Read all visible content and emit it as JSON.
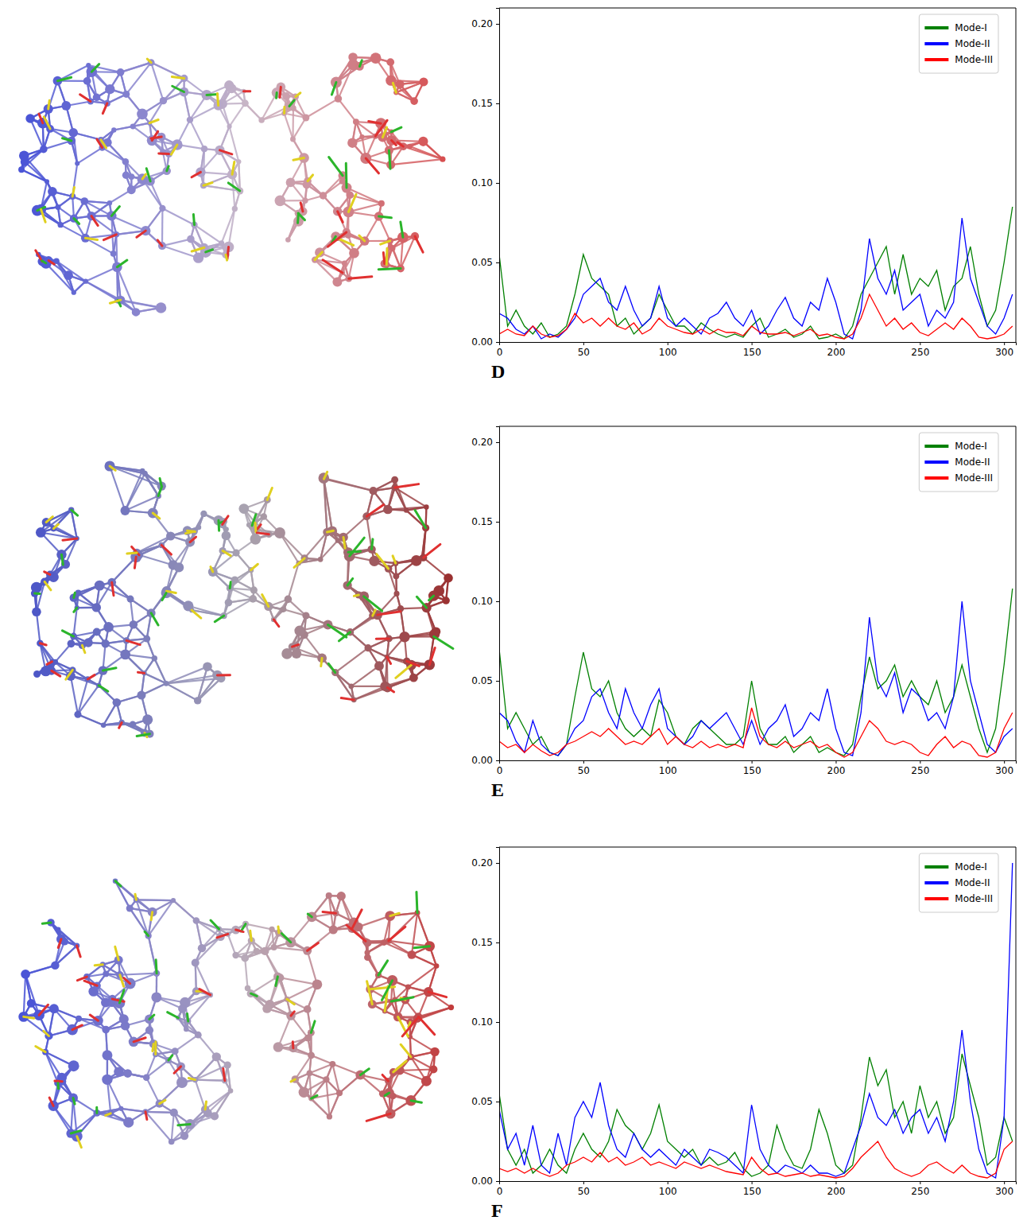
{
  "chart_data": [
    {
      "type": "line",
      "panel_label": "D",
      "x": [
        0,
        5,
        10,
        15,
        20,
        25,
        30,
        35,
        40,
        45,
        50,
        55,
        60,
        65,
        70,
        75,
        80,
        85,
        90,
        95,
        100,
        105,
        110,
        115,
        120,
        125,
        130,
        135,
        140,
        145,
        150,
        155,
        160,
        165,
        170,
        175,
        180,
        185,
        190,
        195,
        200,
        205,
        210,
        215,
        220,
        225,
        230,
        235,
        240,
        245,
        250,
        255,
        260,
        265,
        270,
        275,
        280,
        285,
        290,
        295,
        300,
        305
      ],
      "xlim": [
        0,
        307
      ],
      "ylim": [
        0,
        0.21
      ],
      "xticks": [
        0,
        50,
        100,
        150,
        200,
        250,
        300
      ],
      "yticks": [
        {
          "value": 0,
          "label": "0.00"
        },
        {
          "value": 0.05,
          "label": "0.05"
        },
        {
          "value": 0.1,
          "label": "0.10"
        },
        {
          "value": 0.15,
          "label": "0.15"
        },
        {
          "value": 0.2,
          "label": "0.20"
        }
      ],
      "legend": "upper right",
      "grid": false,
      "series": [
        {
          "name": "Mode-I",
          "color": "#008000",
          "values": [
            0.055,
            0.01,
            0.02,
            0.01,
            0.005,
            0.012,
            0.003,
            0.005,
            0.01,
            0.03,
            0.055,
            0.04,
            0.035,
            0.03,
            0.01,
            0.015,
            0.005,
            0.01,
            0.015,
            0.03,
            0.02,
            0.01,
            0.01,
            0.005,
            0.012,
            0.008,
            0.005,
            0.003,
            0.005,
            0.003,
            0.01,
            0.015,
            0.003,
            0.005,
            0.008,
            0.003,
            0.005,
            0.01,
            0.002,
            0.003,
            0.005,
            0.002,
            0.01,
            0.03,
            0.04,
            0.05,
            0.06,
            0.03,
            0.055,
            0.03,
            0.04,
            0.035,
            0.045,
            0.02,
            0.035,
            0.04,
            0.06,
            0.03,
            0.01,
            0.02,
            0.05,
            0.085
          ]
        },
        {
          "name": "Mode-II",
          "color": "#0000ff",
          "values": [
            0.018,
            0.015,
            0.008,
            0.005,
            0.01,
            0.002,
            0.005,
            0.003,
            0.008,
            0.015,
            0.03,
            0.035,
            0.04,
            0.025,
            0.02,
            0.035,
            0.02,
            0.01,
            0.015,
            0.035,
            0.015,
            0.01,
            0.015,
            0.01,
            0.005,
            0.015,
            0.018,
            0.025,
            0.015,
            0.01,
            0.02,
            0.005,
            0.01,
            0.02,
            0.028,
            0.015,
            0.01,
            0.025,
            0.02,
            0.04,
            0.025,
            0.005,
            0.002,
            0.02,
            0.065,
            0.04,
            0.03,
            0.045,
            0.02,
            0.025,
            0.03,
            0.01,
            0.02,
            0.015,
            0.025,
            0.078,
            0.04,
            0.025,
            0.01,
            0.005,
            0.015,
            0.03
          ]
        },
        {
          "name": "Mode-III",
          "color": "#ff0000",
          "values": [
            0.005,
            0.008,
            0.005,
            0.004,
            0.01,
            0.005,
            0.003,
            0.004,
            0.008,
            0.018,
            0.012,
            0.015,
            0.01,
            0.015,
            0.01,
            0.008,
            0.012,
            0.005,
            0.008,
            0.015,
            0.01,
            0.008,
            0.006,
            0.005,
            0.008,
            0.005,
            0.008,
            0.006,
            0.006,
            0.004,
            0.01,
            0.006,
            0.005,
            0.005,
            0.006,
            0.004,
            0.006,
            0.008,
            0.004,
            0.005,
            0.003,
            0.002,
            0.005,
            0.015,
            0.03,
            0.02,
            0.01,
            0.015,
            0.008,
            0.012,
            0.006,
            0.004,
            0.008,
            0.012,
            0.008,
            0.015,
            0.01,
            0.003,
            0.002,
            0.003,
            0.005,
            0.01
          ]
        }
      ]
    },
    {
      "type": "line",
      "panel_label": "E",
      "x": [
        0,
        5,
        10,
        15,
        20,
        25,
        30,
        35,
        40,
        45,
        50,
        55,
        60,
        65,
        70,
        75,
        80,
        85,
        90,
        95,
        100,
        105,
        110,
        115,
        120,
        125,
        130,
        135,
        140,
        145,
        150,
        155,
        160,
        165,
        170,
        175,
        180,
        185,
        190,
        195,
        200,
        205,
        210,
        215,
        220,
        225,
        230,
        235,
        240,
        245,
        250,
        255,
        260,
        265,
        270,
        275,
        280,
        285,
        290,
        295,
        300,
        305
      ],
      "xlim": [
        0,
        307
      ],
      "ylim": [
        0,
        0.21
      ],
      "xticks": [
        0,
        50,
        100,
        150,
        200,
        250,
        300
      ],
      "yticks": [
        {
          "value": 0,
          "label": "0.00"
        },
        {
          "value": 0.05,
          "label": "0.05"
        },
        {
          "value": 0.1,
          "label": "0.10"
        },
        {
          "value": 0.15,
          "label": "0.15"
        },
        {
          "value": 0.2,
          "label": "0.20"
        }
      ],
      "legend": "upper right",
      "grid": false,
      "series": [
        {
          "name": "Mode-I",
          "color": "#008000",
          "values": [
            0.07,
            0.02,
            0.03,
            0.02,
            0.01,
            0.015,
            0.005,
            0.003,
            0.01,
            0.04,
            0.068,
            0.045,
            0.04,
            0.05,
            0.03,
            0.02,
            0.015,
            0.02,
            0.015,
            0.038,
            0.03,
            0.015,
            0.01,
            0.02,
            0.025,
            0.02,
            0.015,
            0.01,
            0.01,
            0.015,
            0.05,
            0.02,
            0.01,
            0.01,
            0.015,
            0.005,
            0.01,
            0.015,
            0.005,
            0.008,
            0.005,
            0.003,
            0.01,
            0.04,
            0.065,
            0.045,
            0.05,
            0.06,
            0.04,
            0.05,
            0.04,
            0.035,
            0.05,
            0.03,
            0.04,
            0.06,
            0.04,
            0.02,
            0.005,
            0.02,
            0.06,
            0.108
          ]
        },
        {
          "name": "Mode-II",
          "color": "#0000ff",
          "values": [
            0.03,
            0.025,
            0.012,
            0.005,
            0.025,
            0.01,
            0.005,
            0.003,
            0.01,
            0.02,
            0.025,
            0.04,
            0.045,
            0.03,
            0.02,
            0.045,
            0.03,
            0.02,
            0.035,
            0.045,
            0.02,
            0.015,
            0.01,
            0.015,
            0.025,
            0.02,
            0.025,
            0.03,
            0.02,
            0.01,
            0.025,
            0.01,
            0.02,
            0.025,
            0.035,
            0.015,
            0.02,
            0.03,
            0.025,
            0.045,
            0.02,
            0.005,
            0.003,
            0.03,
            0.09,
            0.05,
            0.04,
            0.055,
            0.03,
            0.045,
            0.04,
            0.025,
            0.03,
            0.02,
            0.04,
            0.1,
            0.05,
            0.03,
            0.01,
            0.005,
            0.015,
            0.02
          ]
        },
        {
          "name": "Mode-III",
          "color": "#ff0000",
          "values": [
            0.012,
            0.008,
            0.01,
            0.005,
            0.01,
            0.006,
            0.003,
            0.005,
            0.01,
            0.012,
            0.015,
            0.018,
            0.015,
            0.02,
            0.015,
            0.01,
            0.012,
            0.01,
            0.015,
            0.02,
            0.01,
            0.015,
            0.01,
            0.008,
            0.012,
            0.008,
            0.01,
            0.008,
            0.01,
            0.008,
            0.033,
            0.015,
            0.01,
            0.008,
            0.012,
            0.008,
            0.01,
            0.012,
            0.008,
            0.01,
            0.005,
            0.002,
            0.005,
            0.015,
            0.025,
            0.02,
            0.012,
            0.01,
            0.012,
            0.01,
            0.005,
            0.003,
            0.01,
            0.015,
            0.008,
            0.012,
            0.01,
            0.003,
            0.002,
            0.005,
            0.02,
            0.03
          ]
        }
      ]
    },
    {
      "type": "line",
      "panel_label": "F",
      "x": [
        0,
        5,
        10,
        15,
        20,
        25,
        30,
        35,
        40,
        45,
        50,
        55,
        60,
        65,
        70,
        75,
        80,
        85,
        90,
        95,
        100,
        105,
        110,
        115,
        120,
        125,
        130,
        135,
        140,
        145,
        150,
        155,
        160,
        165,
        170,
        175,
        180,
        185,
        190,
        195,
        200,
        205,
        210,
        215,
        220,
        225,
        230,
        235,
        240,
        245,
        250,
        255,
        260,
        265,
        270,
        275,
        280,
        285,
        290,
        295,
        300,
        305
      ],
      "xlim": [
        0,
        307
      ],
      "ylim": [
        0,
        0.21
      ],
      "xticks": [
        0,
        50,
        100,
        150,
        200,
        250,
        300
      ],
      "yticks": [
        {
          "value": 0,
          "label": "0.00"
        },
        {
          "value": 0.05,
          "label": "0.05"
        },
        {
          "value": 0.1,
          "label": "0.10"
        },
        {
          "value": 0.15,
          "label": "0.15"
        },
        {
          "value": 0.2,
          "label": "0.20"
        }
      ],
      "legend": "upper right",
      "grid": false,
      "series": [
        {
          "name": "Mode-I",
          "color": "#008000",
          "values": [
            0.055,
            0.02,
            0.01,
            0.02,
            0.005,
            0.01,
            0.02,
            0.01,
            0.005,
            0.02,
            0.03,
            0.02,
            0.015,
            0.025,
            0.045,
            0.035,
            0.03,
            0.02,
            0.03,
            0.048,
            0.025,
            0.02,
            0.015,
            0.02,
            0.01,
            0.015,
            0.01,
            0.012,
            0.018,
            0.008,
            0.003,
            0.005,
            0.01,
            0.035,
            0.02,
            0.01,
            0.008,
            0.02,
            0.045,
            0.03,
            0.01,
            0.005,
            0.01,
            0.04,
            0.078,
            0.06,
            0.07,
            0.04,
            0.05,
            0.03,
            0.06,
            0.04,
            0.05,
            0.03,
            0.04,
            0.08,
            0.06,
            0.04,
            0.01,
            0.015,
            0.04,
            0.025
          ]
        },
        {
          "name": "Mode-II",
          "color": "#0000ff",
          "values": [
            0.045,
            0.02,
            0.03,
            0.01,
            0.035,
            0.01,
            0.005,
            0.03,
            0.01,
            0.04,
            0.05,
            0.04,
            0.062,
            0.035,
            0.02,
            0.015,
            0.03,
            0.02,
            0.015,
            0.02,
            0.015,
            0.01,
            0.02,
            0.015,
            0.01,
            0.02,
            0.018,
            0.015,
            0.01,
            0.005,
            0.048,
            0.02,
            0.01,
            0.005,
            0.01,
            0.008,
            0.005,
            0.01,
            0.005,
            0.005,
            0.003,
            0.005,
            0.02,
            0.035,
            0.055,
            0.04,
            0.035,
            0.045,
            0.03,
            0.04,
            0.045,
            0.03,
            0.04,
            0.025,
            0.05,
            0.095,
            0.05,
            0.02,
            0.005,
            0.002,
            0.04,
            0.2
          ]
        },
        {
          "name": "Mode-III",
          "color": "#ff0000",
          "values": [
            0.008,
            0.006,
            0.008,
            0.005,
            0.008,
            0.005,
            0.003,
            0.005,
            0.01,
            0.012,
            0.015,
            0.012,
            0.018,
            0.012,
            0.015,
            0.01,
            0.012,
            0.015,
            0.01,
            0.012,
            0.01,
            0.008,
            0.012,
            0.01,
            0.008,
            0.01,
            0.008,
            0.006,
            0.005,
            0.004,
            0.015,
            0.008,
            0.004,
            0.005,
            0.003,
            0.004,
            0.005,
            0.003,
            0.004,
            0.003,
            0.002,
            0.003,
            0.008,
            0.015,
            0.02,
            0.025,
            0.015,
            0.008,
            0.005,
            0.003,
            0.005,
            0.01,
            0.012,
            0.008,
            0.005,
            0.01,
            0.005,
            0.003,
            0.002,
            0.005,
            0.02,
            0.025
          ]
        }
      ]
    }
  ]
}
